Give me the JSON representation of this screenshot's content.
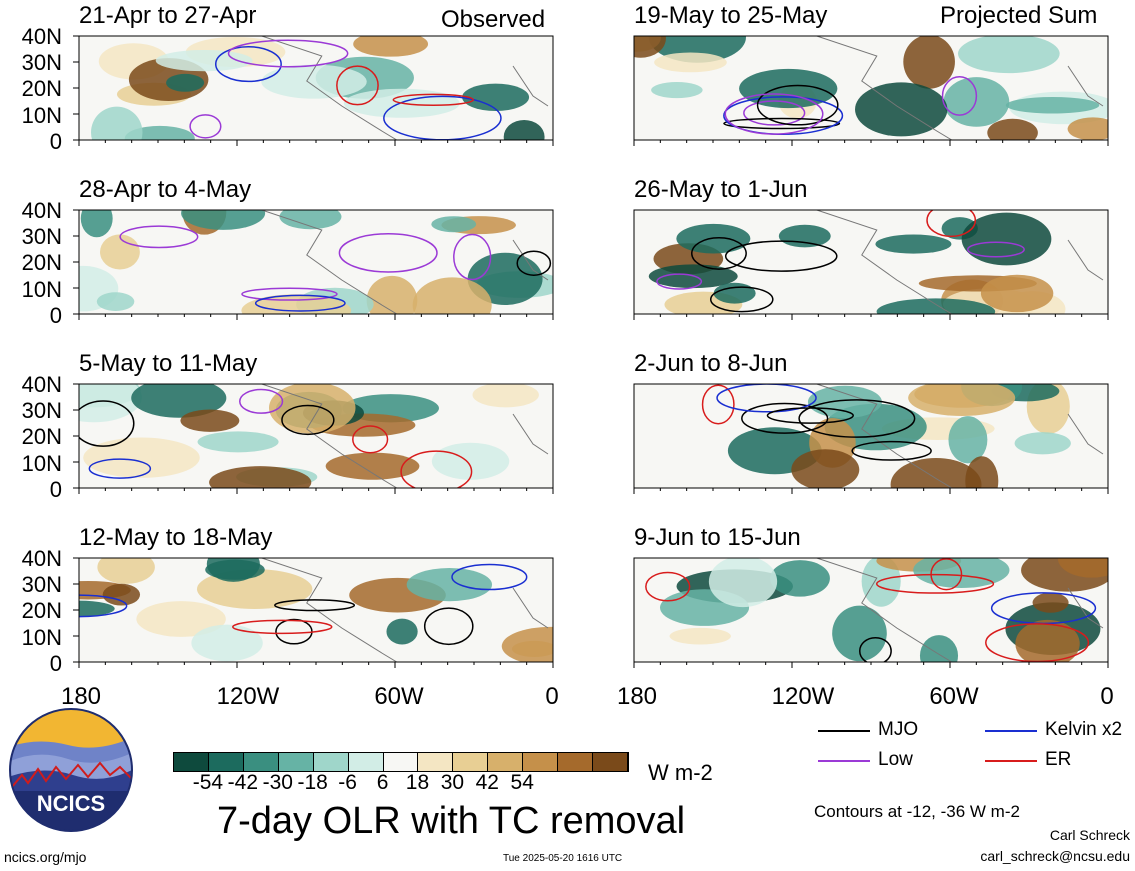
{
  "layout_title": "7-day OLR with TC removal",
  "units": "W m-2",
  "corner_labels": {
    "left": "Observed",
    "right": "Projected Sum"
  },
  "lat_ticks": [
    "40N",
    "30N",
    "20N",
    "10N",
    "0"
  ],
  "lon_ticks": [
    "180",
    "120W",
    "60W",
    "0"
  ],
  "panels": [
    {
      "title": "21-Apr to 27-Apr",
      "side": "observed"
    },
    {
      "title": "28-Apr to 4-May",
      "side": "observed"
    },
    {
      "title": "5-May to 11-May",
      "side": "observed"
    },
    {
      "title": "12-May to 18-May",
      "side": "observed"
    },
    {
      "title": "19-May to 25-May",
      "side": "projected"
    },
    {
      "title": "26-May to 1-Jun",
      "side": "projected"
    },
    {
      "title": "2-Jun to 8-Jun",
      "side": "projected"
    },
    {
      "title": "9-Jun to 15-Jun",
      "side": "projected"
    }
  ],
  "colorbar": {
    "labels": [
      "-54",
      "-42",
      "-30",
      "-18",
      "-6",
      "6",
      "18",
      "30",
      "42",
      "54"
    ],
    "colors": [
      "#0e4a3d",
      "#1c6b5e",
      "#3a8f80",
      "#66b3a5",
      "#9fd6ca",
      "#d2ede6",
      "#f7f7f4",
      "#f4e6c3",
      "#e8cf94",
      "#d7b06b",
      "#c5904a",
      "#a56a2c",
      "#7a4a1a"
    ]
  },
  "legend": [
    {
      "name": "MJO",
      "color": "#000000"
    },
    {
      "name": "Kelvin x2",
      "color": "#1a2fd1"
    },
    {
      "name": "Low",
      "color": "#9b3ad6"
    },
    {
      "name": "ER",
      "color": "#d81c1c"
    }
  ],
  "contour_note": "Contours at -12, -36 W m-2",
  "author": {
    "name": "Carl Schreck",
    "email": "carl_schreck@ncsu.edu"
  },
  "logo_text": "NCICS",
  "site": "ncics.org/mjo",
  "timestamp": "Tue 2025-05-20 1616 UTC"
}
